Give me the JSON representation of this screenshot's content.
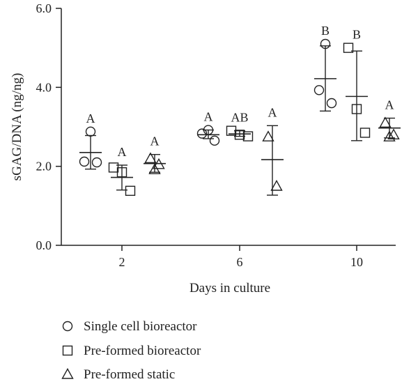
{
  "chart_data": {
    "type": "scatter",
    "title": "",
    "xlabel": "Days in culture",
    "ylabel": "sGAG/DNA (ng/ng)",
    "ylim": [
      0,
      6
    ],
    "y_ticks": [
      "0.0",
      "2.0",
      "4.0",
      "6.0"
    ],
    "categories": [
      "2",
      "6",
      "10"
    ],
    "grid": false,
    "legend_position": "bottom-left",
    "series": [
      {
        "name": "Single cell bioreactor",
        "marker": "circle",
        "groups": [
          {
            "category": "2",
            "points": [
              2.88,
              2.12,
              2.1
            ],
            "mean": 2.35,
            "sd_low": 1.93,
            "sd_high": 2.78,
            "letter": "A"
          },
          {
            "category": "6",
            "points": [
              2.92,
              2.83,
              2.65
            ],
            "mean": 2.8,
            "sd_low": 2.7,
            "sd_high": 2.92,
            "letter": "A"
          },
          {
            "category": "10",
            "points": [
              5.1,
              3.93,
              3.6
            ],
            "mean": 4.22,
            "sd_low": 3.4,
            "sd_high": 5.05,
            "letter": "B"
          }
        ]
      },
      {
        "name": "Pre-formed bioreactor",
        "marker": "square",
        "groups": [
          {
            "category": "2",
            "points": [
              1.97,
              1.85,
              1.38
            ],
            "mean": 1.72,
            "sd_low": 1.4,
            "sd_high": 2.03,
            "letter": "A"
          },
          {
            "category": "6",
            "points": [
              2.9,
              2.8,
              2.76
            ],
            "mean": 2.82,
            "sd_low": 2.76,
            "sd_high": 2.9,
            "letter": "AB"
          },
          {
            "category": "10",
            "points": [
              5.0,
              3.45,
              2.85
            ],
            "mean": 3.77,
            "sd_low": 2.65,
            "sd_high": 4.92,
            "letter": "B"
          }
        ]
      },
      {
        "name": "Pre-formed static",
        "marker": "triangle",
        "groups": [
          {
            "category": "2",
            "points": [
              2.2,
              2.05,
              1.92
            ],
            "mean": 2.07,
            "sd_low": 1.85,
            "sd_high": 2.3,
            "letter": "A"
          },
          {
            "category": "6",
            "points": [
              2.75,
              1.5
            ],
            "mean": 2.17,
            "sd_low": 1.27,
            "sd_high": 3.03,
            "letter": "A"
          },
          {
            "category": "10",
            "points": [
              3.1,
              2.8,
              2.75
            ],
            "mean": 2.97,
            "sd_low": 2.72,
            "sd_high": 3.22,
            "letter": "A"
          }
        ]
      }
    ]
  }
}
